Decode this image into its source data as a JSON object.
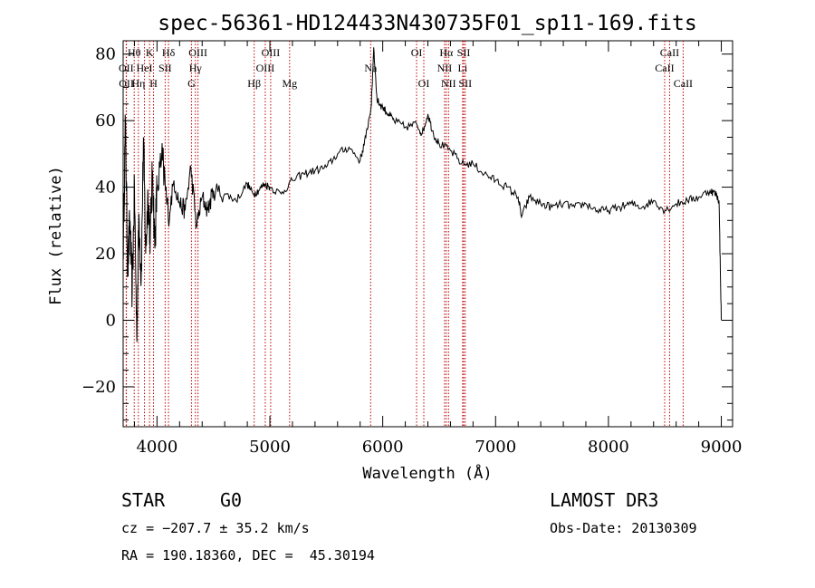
{
  "chart_data": {
    "type": "line",
    "title": "spec-56361-HD124433N430735F01_sp11-169.fits",
    "xlabel": "Wavelength (Å)",
    "ylabel": "Flux (relative)",
    "xlim": [
      3700,
      9100
    ],
    "ylim": [
      -32,
      84
    ],
    "x_ticks": [
      4000,
      5000,
      6000,
      7000,
      8000,
      9000
    ],
    "y_ticks": [
      -20,
      0,
      20,
      40,
      60,
      80
    ],
    "grid": false,
    "series": [
      {
        "x": [
          3700,
          3720,
          3740,
          3760,
          3780,
          3800,
          3820,
          3840,
          3860,
          3880,
          3900,
          3920,
          3940,
          3960,
          3980,
          4000,
          4050,
          4100,
          4150,
          4200,
          4250,
          4300,
          4350,
          4400,
          4450,
          4500,
          4600,
          4700,
          4800,
          4850,
          4900,
          4950,
          5000,
          5100,
          5200,
          5300,
          5400,
          5500,
          5600,
          5700,
          5800,
          5850,
          5900,
          5920,
          5950,
          6000,
          6050,
          6100,
          6200,
          6300,
          6350,
          6400,
          6450,
          6500,
          6600,
          6700,
          6800,
          6900,
          7000,
          7100,
          7200,
          7230,
          7300,
          7400,
          7500,
          7600,
          7700,
          7800,
          7900,
          8000,
          8100,
          8200,
          8300,
          8400,
          8500,
          8600,
          8700,
          8800,
          8900,
          8950,
          8980,
          9000
        ],
        "y": [
          20,
          60,
          15,
          30,
          8,
          40,
          -5,
          32,
          12,
          55,
          20,
          38,
          25,
          45,
          22,
          40,
          48,
          30,
          42,
          35,
          33,
          46,
          28,
          37,
          33,
          39,
          38,
          36,
          41,
          38,
          39,
          41,
          40,
          38,
          42,
          44,
          45,
          46,
          50,
          52,
          48,
          55,
          65,
          82,
          66,
          64,
          62,
          60,
          58,
          59,
          56,
          62,
          56,
          53,
          51,
          47,
          47,
          44,
          42,
          40,
          37,
          31,
          37,
          35,
          34,
          35,
          34,
          35,
          33,
          33,
          34,
          35,
          34,
          36,
          33,
          35,
          36,
          37,
          39,
          38,
          36,
          0
        ]
      }
    ],
    "line_marks": [
      {
        "label": "Hθ",
        "x": 3798,
        "row": 0
      },
      {
        "label": "OII",
        "x": 3727,
        "row": 1
      },
      {
        "label": "OII",
        "x": 3729,
        "row": 2
      },
      {
        "label": "HeI",
        "x": 3889,
        "row": 1
      },
      {
        "label": "Hη",
        "x": 3835,
        "row": 2
      },
      {
        "label": "K",
        "x": 3934,
        "row": 0
      },
      {
        "label": "H",
        "x": 3969,
        "row": 2
      },
      {
        "label": "Hδ",
        "x": 4102,
        "row": 0
      },
      {
        "label": "SII",
        "x": 4072,
        "row": 1
      },
      {
        "label": "OIII",
        "x": 4363,
        "row": 0
      },
      {
        "label": "Hγ",
        "x": 4340,
        "row": 1
      },
      {
        "label": "G",
        "x": 4305,
        "row": 2
      },
      {
        "label": "Hβ",
        "x": 4861,
        "row": 2
      },
      {
        "label": "OIII",
        "x": 5007,
        "row": 0
      },
      {
        "label": "OIII",
        "x": 4959,
        "row": 1
      },
      {
        "label": "Mg",
        "x": 5175,
        "row": 2
      },
      {
        "label": "Na",
        "x": 5893,
        "row": 1
      },
      {
        "label": "OI",
        "x": 6300,
        "row": 0
      },
      {
        "label": "OI",
        "x": 6364,
        "row": 2
      },
      {
        "label": "Hα",
        "x": 6563,
        "row": 0
      },
      {
        "label": "NII",
        "x": 6548,
        "row": 1
      },
      {
        "label": "NII",
        "x": 6583,
        "row": 2
      },
      {
        "label": "SII",
        "x": 6717,
        "row": 0
      },
      {
        "label": "Li",
        "x": 6708,
        "row": 1
      },
      {
        "label": "SII",
        "x": 6731,
        "row": 2
      },
      {
        "label": "CaII",
        "x": 8542,
        "row": 0
      },
      {
        "label": "CaII",
        "x": 8498,
        "row": 1
      },
      {
        "label": "CaII",
        "x": 8662,
        "row": 2
      }
    ]
  },
  "footer": {
    "class_label": "STAR",
    "subclass": "G0",
    "survey": "LAMOST DR3",
    "cz": "cz = −207.7 ± 35.2 km/s",
    "obs_date": "Obs-Date: 20130309",
    "coords": "RA = 190.18360, DEC =  45.30194"
  }
}
